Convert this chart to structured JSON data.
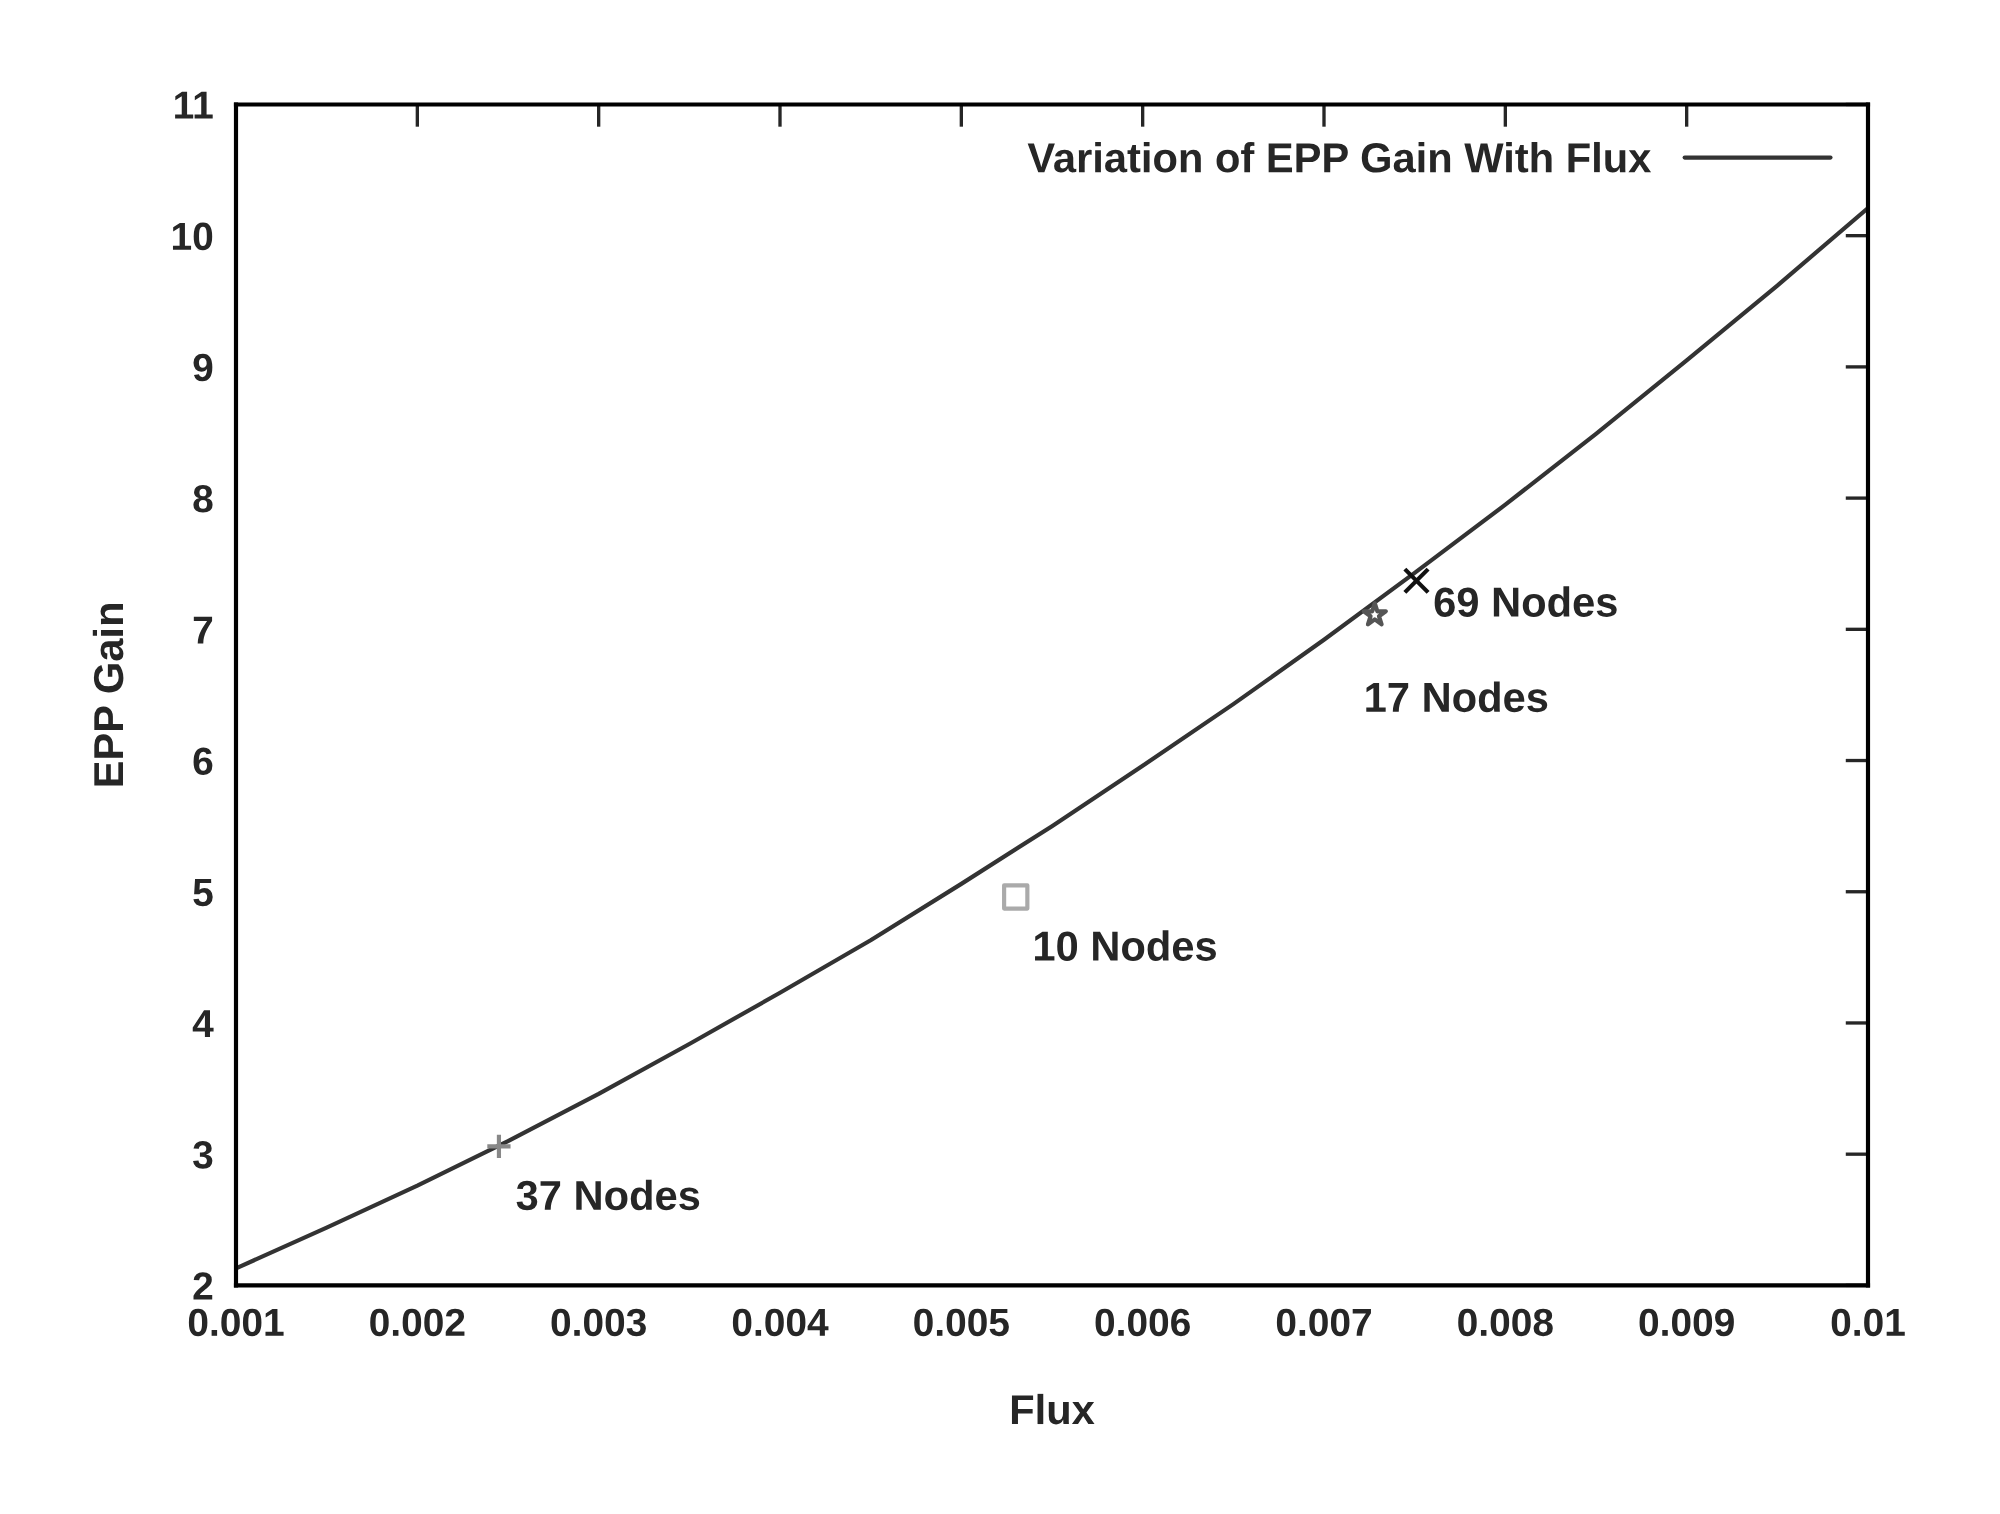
{
  "chart_data": {
    "type": "line",
    "xlabel": "Flux",
    "ylabel": "EPP Gain",
    "series": [
      {
        "name": "Variation of EPP Gain With Flux",
        "color": "#333333",
        "marker": "none",
        "line_style": "solid",
        "x": [
          0.001,
          0.0015,
          0.002,
          0.0025,
          0.003,
          0.0035,
          0.004,
          0.0045,
          0.005,
          0.0055,
          0.006,
          0.0065,
          0.007,
          0.0075,
          0.008,
          0.0085,
          0.009,
          0.0095,
          0.01
        ],
        "values": [
          2.13,
          2.44,
          2.76,
          3.1,
          3.46,
          3.84,
          4.23,
          4.63,
          5.06,
          5.5,
          5.96,
          6.43,
          6.92,
          7.43,
          7.95,
          8.49,
          9.05,
          9.62,
          10.21
        ]
      },
      {
        "type": "scatter",
        "color": "#888888",
        "marker": "plus",
        "x": [
          0.00245
        ],
        "values": [
          3.06
        ]
      },
      {
        "type": "scatter",
        "color": "#aaaaaa",
        "marker": "square",
        "x": [
          0.0053
        ],
        "values": [
          4.96
        ]
      },
      {
        "type": "scatter",
        "color": "#555555",
        "marker": "star",
        "x": [
          0.00728
        ],
        "values": [
          7.11
        ]
      },
      {
        "type": "scatter",
        "color": "#111111",
        "marker": "cross",
        "x": [
          0.00751
        ],
        "values": [
          7.37
        ]
      }
    ],
    "annotations": [
      {
        "text": "37 Nodes",
        "x": 0.00245,
        "y": 3.06
      },
      {
        "text": "10 Nodes",
        "x": 0.0053,
        "y": 4.96
      },
      {
        "text": "17 Nodes",
        "x": 0.00728,
        "y": 7.11
      },
      {
        "text": "69 Nodes",
        "x": 0.00751,
        "y": 7.37
      }
    ],
    "xlim": [
      0.001,
      0.01
    ],
    "xticks": [
      0.001,
      0.002,
      0.003,
      0.004,
      0.005,
      0.006,
      0.007,
      0.008,
      0.009,
      0.01
    ],
    "ylim": [
      2,
      11
    ],
    "yticks": [
      2,
      3,
      4,
      5,
      6,
      7,
      8,
      9,
      10,
      11
    ],
    "grid": false,
    "legend": "top right"
  }
}
